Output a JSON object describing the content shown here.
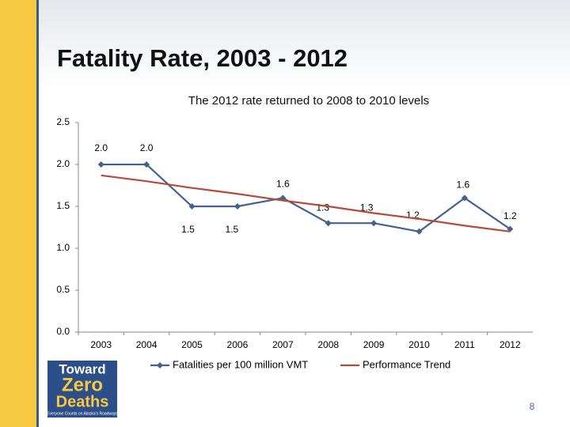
{
  "slide_title": "Fatality Rate, 2003 - 2012",
  "chart_data": {
    "type": "line",
    "subtitle": "The 2012 rate returned to 2008 to 2010 levels",
    "categories": [
      "2003",
      "2004",
      "2005",
      "2006",
      "2007",
      "2008",
      "2009",
      "2010",
      "2011",
      "2012"
    ],
    "series": [
      {
        "name": "Fatalities per 100 million VMT",
        "color": "#44618f",
        "values": [
          2.0,
          2.0,
          1.5,
          1.5,
          1.6,
          1.3,
          1.3,
          1.2,
          1.6,
          1.23
        ],
        "value_labels": [
          "2.0",
          "2.0",
          "1.5",
          "1.5",
          "1.6",
          "1.3",
          "1.3",
          "1.2",
          "1.6",
          "1.2"
        ],
        "markers": true
      },
      {
        "name": "Performance Trend",
        "color": "#b84a3c",
        "values": [
          1.87,
          1.8,
          1.72,
          1.65,
          1.57,
          1.5,
          1.42,
          1.35,
          1.27,
          1.2
        ],
        "markers": false
      }
    ],
    "ylim": [
      0,
      2.5
    ],
    "yticks": [
      {
        "value": 0,
        "label": "0.0"
      },
      {
        "value": 0.5,
        "label": "0.5"
      },
      {
        "value": 1,
        "label": "1.0"
      },
      {
        "value": 1.5,
        "label": "1.5"
      },
      {
        "value": 2,
        "label": "2.0"
      },
      {
        "value": 2.5,
        "label": "2.5"
      }
    ],
    "legend": "bottom"
  },
  "logo": {
    "line1": "Toward",
    "line2": "Zero",
    "line3": "Deaths",
    "tagline": "Everyone Counts on Alaska's Roadways"
  },
  "page_number": "8"
}
